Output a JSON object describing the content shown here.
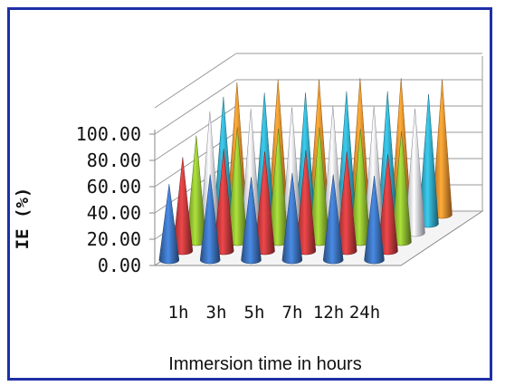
{
  "chart_data": {
    "type": "bar",
    "style": "3d-cone",
    "title": "",
    "xlabel": "Immersion time in hours",
    "ylabel": "IE  (%)",
    "categories": [
      "1h",
      "3h",
      "5h",
      "7h",
      "12h",
      "24h"
    ],
    "ylim": [
      0,
      100
    ],
    "yticks": [
      "0.00",
      "20.00",
      "40.00",
      "60.00",
      "80.00",
      "100.00"
    ],
    "grid": true,
    "legend": "none",
    "series": [
      {
        "color": "#3a6fb7",
        "values": [
          55,
          62,
          60,
          63,
          62,
          61
        ]
      },
      {
        "color": "#c0393b",
        "values": [
          68,
          74,
          72,
          73,
          72,
          70
        ]
      },
      {
        "color": "#8ab52f",
        "values": [
          77,
          83,
          82,
          83,
          82,
          80
        ]
      },
      {
        "color": "#d8dcf0",
        "values": [
          88,
          90,
          91,
          92,
          92,
          90
        ]
      },
      {
        "color": "#2fa3bf",
        "values": [
          92,
          95,
          95,
          96,
          96,
          94
        ]
      },
      {
        "color": "#ee8a2c",
        "values": [
          96,
          98,
          98,
          99,
          99,
          98
        ]
      }
    ]
  }
}
